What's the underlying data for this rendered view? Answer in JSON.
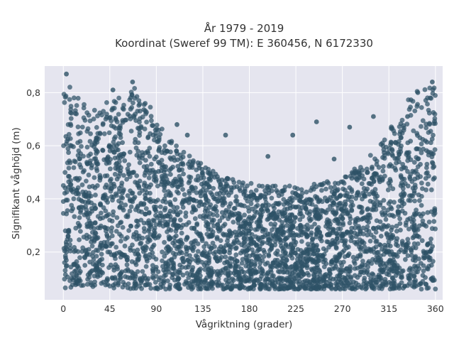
{
  "chart_data": {
    "type": "scatter",
    "title_line1": "År 1979 - 2019",
    "title_line2": "Koordinat (Sweref 99 TM): E 360456, N 6172330",
    "xlabel": "Vågriktning (grader)",
    "ylabel": "Signifikant våghöjd (m)",
    "xlim": [
      -18,
      367
    ],
    "ylim": [
      0.02,
      0.9
    ],
    "xticks": [
      0,
      45,
      90,
      135,
      180,
      225,
      270,
      315,
      360
    ],
    "xtick_labels": [
      "0",
      "45",
      "90",
      "135",
      "180",
      "225",
      "270",
      "315",
      "360"
    ],
    "yticks": [
      0.2,
      0.4,
      0.6,
      0.8
    ],
    "ytick_labels": [
      "0,2",
      "0,4",
      "0,6",
      "0,8"
    ],
    "grid": true,
    "legend": "none",
    "marker_color": "#2e5266",
    "envelope": {
      "x": [
        0,
        5,
        15,
        30,
        45,
        60,
        70,
        80,
        90,
        100,
        115,
        135,
        160,
        180,
        200,
        225,
        250,
        270,
        290,
        305,
        315,
        325,
        335,
        345,
        355,
        360
      ],
      "upper": [
        0.83,
        0.86,
        0.78,
        0.74,
        0.77,
        0.8,
        0.83,
        0.78,
        0.7,
        0.64,
        0.58,
        0.53,
        0.48,
        0.46,
        0.45,
        0.45,
        0.46,
        0.48,
        0.54,
        0.6,
        0.66,
        0.72,
        0.78,
        0.82,
        0.83,
        0.82
      ],
      "lower": [
        0.06,
        0.06,
        0.07,
        0.07,
        0.06,
        0.06,
        0.06,
        0.06,
        0.06,
        0.06,
        0.06,
        0.06,
        0.06,
        0.06,
        0.06,
        0.06,
        0.06,
        0.06,
        0.06,
        0.06,
        0.06,
        0.06,
        0.06,
        0.06,
        0.06,
        0.06
      ]
    },
    "outliers": [
      {
        "x": 3,
        "y": 0.87
      },
      {
        "x": 67,
        "y": 0.84
      },
      {
        "x": 48,
        "y": 0.81
      },
      {
        "x": 245,
        "y": 0.69
      },
      {
        "x": 222,
        "y": 0.64
      },
      {
        "x": 157,
        "y": 0.64
      },
      {
        "x": 333,
        "y": 0.71
      },
      {
        "x": 343,
        "y": 0.8
      },
      {
        "x": 120,
        "y": 0.64
      },
      {
        "x": 198,
        "y": 0.56
      },
      {
        "x": 277,
        "y": 0.67
      },
      {
        "x": 300,
        "y": 0.71
      },
      {
        "x": 357,
        "y": 0.84
      },
      {
        "x": 110,
        "y": 0.68
      },
      {
        "x": 262,
        "y": 0.55
      }
    ]
  }
}
